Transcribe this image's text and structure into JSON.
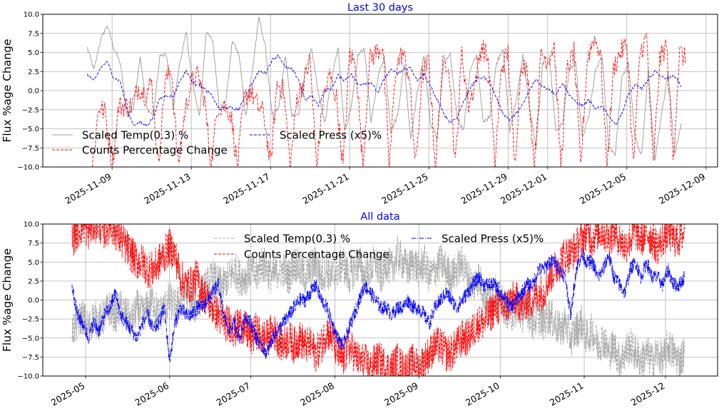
{
  "chart_data": [
    {
      "type": "line",
      "title": "Last 30 days",
      "title_color": "#0000ff",
      "ylabel": "Flux %age Change",
      "ylim": [
        -10,
        10
      ],
      "yticks": [
        10.0,
        7.5,
        5.0,
        2.5,
        0.0,
        -2.5,
        -5.0,
        -7.5,
        -10.0
      ],
      "ytick_labels": [
        "10.0",
        "7.5",
        "5.0",
        "2.5",
        "0.0",
        "−2.5",
        "−5.0",
        "−7.5",
        "−10.0"
      ],
      "xlim": [
        "2025-11-05T12:00",
        "2025-12-09T14:00"
      ],
      "xticks": [
        "2025-11-09",
        "2025-11-13",
        "2025-11-17",
        "2025-11-21",
        "2025-11-25",
        "2025-11-29",
        "2025-12-01",
        "2025-12-05",
        "2025-12-09"
      ],
      "grid": true,
      "legend": {
        "placement": "lower-left",
        "columns": 2
      },
      "series": [
        {
          "name": "Scaled Temp(0.3) %",
          "color": "#999999",
          "style": "solid",
          "noise": 0.3,
          "x_start": "2025-11-07T18:00",
          "x_end": "2025-12-07T18:00",
          "values": [
            5.6,
            2.7,
            6.6,
            8.6,
            5.6,
            3.6,
            -3.3,
            -2.3,
            4.6,
            -2.3,
            -3.3,
            4.6,
            4.6,
            -2.3,
            3.6,
            7.6,
            0.6,
            -3.3,
            7.6,
            6.6,
            -2.3,
            -1.3,
            6.6,
            4.6,
            -3.3,
            2.6,
            9.6,
            5.6,
            -3.3,
            -2.3,
            4.6,
            -3.3,
            -3.3,
            2.6,
            5.6,
            -0.3,
            -4.3,
            1.6,
            5.6,
            -5.3,
            -2.3,
            4.6,
            5.6,
            -4.3,
            1.6,
            4.6,
            -5.3,
            -3.3,
            3.6,
            -6.3,
            -0.3,
            4.6,
            -4.3,
            -6.3,
            3.6,
            4.6,
            -3.3,
            -5.3,
            2.6,
            4.6,
            -4.3,
            -3.3,
            3.6,
            5.6,
            -5.3,
            -1.3,
            4.6,
            -2.3,
            -7.3,
            3.6,
            4.6,
            -5.3,
            -4.3,
            2.6,
            3.6,
            -6.3,
            -3.3,
            2.6,
            4.6,
            -7.3,
            -8.3,
            1.6,
            3.6,
            -6.3,
            -8.3,
            2.6,
            -9.3,
            -3.3,
            2.6,
            -8.3,
            -4.3
          ]
        },
        {
          "name": "Counts Percentage Change",
          "color": "#ff0000",
          "style": "dashed",
          "noise": 1.5,
          "x_start": "2025-11-08T00:00",
          "x_end": "2025-12-08T00:00",
          "values": [
            -10,
            -2,
            -3,
            -10,
            -2,
            -2,
            -2,
            0.5,
            -0.5,
            1.0,
            -10,
            1,
            3,
            -10,
            -3,
            1,
            2,
            -1,
            -10,
            -2,
            -2,
            -3,
            -10,
            -1,
            0,
            -2,
            -3,
            -10,
            1,
            0,
            -10,
            -1,
            1,
            4,
            -10,
            -1,
            2,
            -1,
            -10,
            5,
            3,
            -10,
            4,
            5,
            6,
            -10,
            3,
            5,
            2,
            -10,
            2,
            4,
            -10,
            3,
            4,
            -10,
            5,
            -2,
            1,
            6,
            4,
            -10,
            3,
            5,
            -10,
            4,
            2,
            -10,
            5,
            4,
            6,
            -10,
            3,
            5,
            -10,
            4,
            7,
            5,
            -10,
            3,
            5,
            6,
            -10,
            5,
            7,
            -10,
            4,
            6,
            -9,
            5,
            4
          ]
        },
        {
          "name": "Scaled Press (x5)%",
          "color": "#0000ff",
          "style": "dashed",
          "noise": 0.2,
          "x_start": "2025-11-07T18:00",
          "x_end": "2025-12-07T18:00",
          "values": [
            2.2,
            1.2,
            3.0,
            3.8,
            1.7,
            1.2,
            -2.5,
            -4.5,
            -4.2,
            -4.6,
            -3.5,
            -1.0,
            -0.6,
            -0.8,
            1.2,
            2.6,
            1.0,
            0.8,
            0.0,
            -0.8,
            -2.5,
            -2.2,
            -2.3,
            -2.5,
            -0.5,
            1.0,
            2.5,
            2.3,
            4.0,
            4.6,
            3.0,
            2.8,
            1.5,
            -1.3,
            -0.7,
            -1.9,
            0.0,
            0.3,
            2.0,
            1.3,
            2.2,
            0.8,
            1.0,
            1.1,
            -0.3,
            1.5,
            2.8,
            2.2,
            2.8,
            3.0,
            1.2,
            2.2,
            0.5,
            -1.2,
            -3.0,
            -4.2,
            -3.5,
            -1.5,
            0.3,
            1.5,
            1.8,
            1.0,
            -1.0,
            -3.0,
            -3.8,
            -3.0,
            -1.8,
            0.0,
            1.5,
            0.5,
            0.2,
            -0.5,
            1.0,
            -0.5,
            -1.5,
            -2.0,
            -1.2,
            -2.5,
            -2.0,
            -3.2,
            -4.5,
            -3.0,
            -0.5,
            0.7,
            0.3,
            1.3,
            2.6,
            1.8,
            1.6,
            2.0,
            0.5
          ]
        }
      ]
    },
    {
      "type": "line",
      "title": "All data",
      "title_color": "#0000ff",
      "ylabel": "Flux %age Change",
      "ylim": [
        -10,
        10
      ],
      "yticks": [
        10.0,
        7.5,
        5.0,
        2.5,
        0.0,
        -2.5,
        -5.0,
        -7.5,
        -10.0
      ],
      "ytick_labels": [
        "10.0",
        "7.5",
        "5.0",
        "2.5",
        "0.0",
        "−2.5",
        "−5.0",
        "−7.5",
        "−10.0"
      ],
      "xlim": [
        "2025-04-15T05:00",
        "2025-12-20T05:00"
      ],
      "xticks": [
        "2025-05",
        "2025-06",
        "2025-07",
        "2025-08",
        "2025-09",
        "2025-10",
        "2025-11",
        "2025-12"
      ],
      "grid": true,
      "legend": {
        "placement": "upper-center",
        "columns": 2
      },
      "series": [
        {
          "name": "Scaled Temp(0.3) %",
          "color": "#aaaaaa",
          "style": "dashed",
          "noise": 2.5,
          "x_start": "2025-04-26T00:00",
          "x_end": "2025-12-08T00:00",
          "values": [
            -4,
            -3,
            -2,
            -4,
            -2,
            -3,
            -2,
            -1,
            -2,
            -1,
            -2,
            -3,
            -1,
            -2,
            -1,
            0,
            -2,
            -1,
            0,
            -1,
            0,
            1,
            0,
            -1,
            1,
            2,
            3,
            2,
            2,
            3,
            4,
            3,
            3,
            4,
            3,
            5,
            4,
            3,
            4,
            4,
            3,
            5,
            4,
            3,
            4,
            5,
            3,
            4,
            3,
            4,
            5,
            3,
            4,
            5,
            3,
            4,
            5,
            3,
            5,
            4,
            6,
            5,
            4,
            5,
            4,
            5,
            3,
            4,
            5,
            4,
            3,
            4,
            5,
            3,
            2,
            3,
            1,
            0,
            1,
            0,
            -1,
            -2,
            -1,
            -2,
            -1,
            -3,
            -2,
            -3,
            -2,
            -3,
            -4,
            -3,
            -5,
            -4,
            -3,
            -5,
            -4,
            -6,
            -5,
            -7,
            -6,
            -8,
            -7,
            -6,
            -7,
            -8,
            -7,
            -8,
            -7,
            -8,
            -6,
            -7,
            -8,
            -7
          ]
        },
        {
          "name": "Counts Percentage Change",
          "color": "#ff0000",
          "style": "dashed",
          "noise": 2.5,
          "x_start": "2025-04-26T00:00",
          "x_end": "2025-12-08T00:00",
          "values": [
            8,
            9,
            10,
            9,
            10,
            10,
            9,
            10,
            9,
            8,
            7,
            6,
            5,
            5,
            4,
            4,
            5,
            6,
            7,
            6,
            3,
            2,
            2,
            3,
            1,
            0,
            -1,
            -2,
            -3,
            -3,
            -4,
            -3,
            -4,
            -5,
            -4,
            -5,
            -5,
            -4,
            -5,
            -6,
            -5,
            -6,
            -5,
            -6,
            -6,
            -7,
            -6,
            -4,
            -5,
            -7,
            -8,
            -6,
            -7,
            -8,
            -8,
            -9,
            -8,
            -8,
            -9,
            -9,
            -8,
            -9,
            -9,
            -8,
            -9,
            -8,
            -7,
            -6,
            -6,
            -7,
            -7,
            -6,
            -5,
            -5,
            -4,
            -3,
            -3,
            -2,
            -1,
            -1,
            -1,
            0,
            0,
            -1,
            0,
            0,
            1,
            1,
            3,
            4,
            5,
            6,
            6,
            7,
            8,
            9,
            8,
            9,
            9,
            8,
            9,
            8,
            7,
            8,
            9,
            8,
            9,
            8,
            7,
            8,
            9,
            8,
            8,
            9
          ]
        },
        {
          "name": "Scaled Press (x5)%",
          "color": "#0000ff",
          "style": "dashdot",
          "noise": 1.0,
          "x_start": "2025-04-26T00:00",
          "x_end": "2025-12-08T00:00",
          "values": [
            2,
            -2,
            -3,
            -5,
            -3,
            -4,
            -2,
            -1,
            1,
            -2,
            -3,
            -4,
            -5,
            -3,
            -2,
            -4,
            -3,
            -1,
            -8,
            -3,
            -1,
            -2,
            -2,
            -1,
            -1,
            0,
            1,
            2,
            -2,
            -4,
            -3,
            -5,
            -2,
            -3,
            -5,
            -6,
            -7,
            -5,
            -4,
            -3,
            -2,
            -1,
            0,
            0,
            1,
            2,
            0,
            -1,
            -3,
            -5,
            -6,
            -4,
            -2,
            0,
            2,
            1,
            0,
            -1,
            -1,
            -2,
            -1,
            -1,
            0,
            -1,
            -1,
            -2,
            -3,
            -1,
            0,
            1,
            0,
            -1,
            0,
            1,
            2,
            3,
            2,
            2,
            2,
            1,
            0,
            -1,
            0,
            1,
            2,
            2,
            4,
            4,
            5,
            5,
            4,
            3,
            -2,
            4,
            6,
            5,
            5,
            3,
            4,
            6,
            3,
            2,
            1,
            4,
            5,
            3,
            5,
            3,
            3,
            2,
            4,
            2,
            2,
            3
          ]
        }
      ]
    }
  ]
}
